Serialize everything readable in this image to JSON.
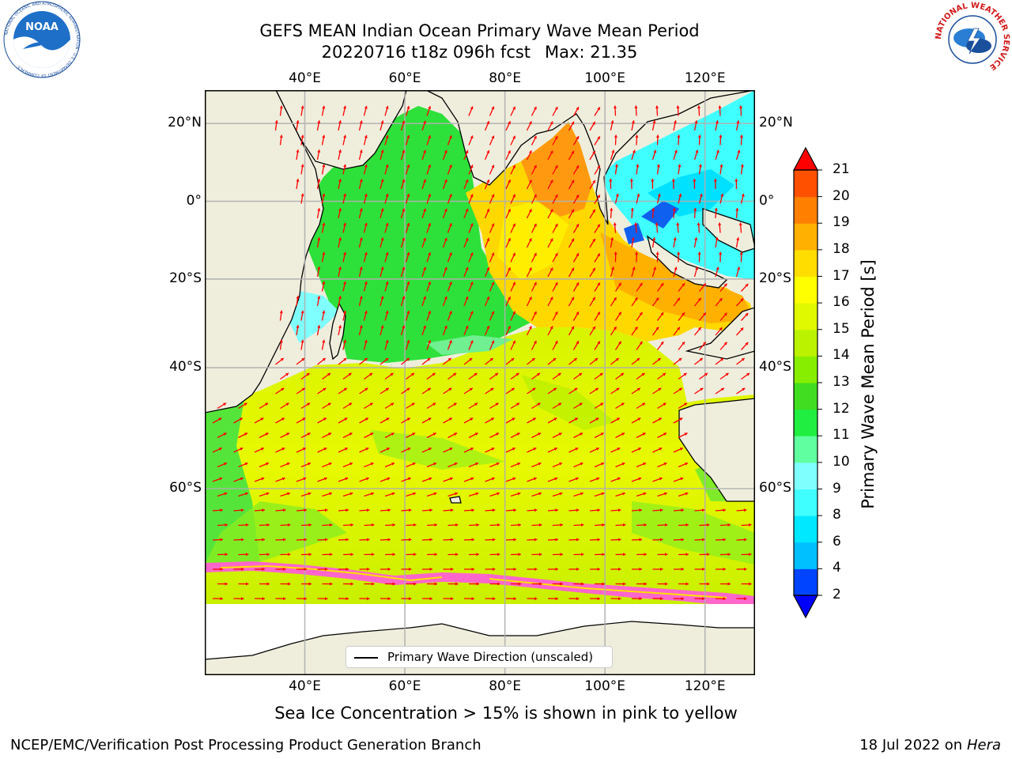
{
  "title": {
    "line1": "GEFS MEAN Indian Ocean Primary Wave Mean Period",
    "line2_run": "20220716 t18z 096h fcst",
    "line2_max": "Max: 21.35"
  },
  "map": {
    "lon_labels": [
      "40°E",
      "60°E",
      "80°E",
      "100°E",
      "120°E"
    ],
    "lat_labels": [
      "20°N",
      "0°",
      "20°S",
      "40°S",
      "60°S"
    ],
    "lon_range": [
      20,
      130
    ],
    "lat_range": [
      -77,
      28
    ],
    "legend_label": "Primary Wave Direction (unscaled)",
    "land_color": "#efeedd",
    "arrow_color": "#ff0000"
  },
  "colorbar": {
    "label": "Primary Wave Mean Period [s]",
    "ticks": [
      "2",
      "4",
      "6",
      "8",
      "9",
      "10",
      "11",
      "12",
      "13",
      "14",
      "15",
      "16",
      "17",
      "18",
      "19",
      "20",
      "21"
    ],
    "colors": [
      "#0044ff",
      "#00c0ff",
      "#00e8ff",
      "#40ffff",
      "#80ffff",
      "#60ffa0",
      "#20ee40",
      "#40dd20",
      "#88ee00",
      "#bbf200",
      "#e0f800",
      "#ffff00",
      "#ffdd00",
      "#ffb000",
      "#ff8000",
      "#ff5000",
      "#ff1a00"
    ],
    "under_color": "#0000ff",
    "over_color": "#ff0000"
  },
  "subtitle": "Sea Ice Concentration > 15% is shown in pink to yellow",
  "footer": {
    "left": "NCEP/EMC/Verification Post Processing Product Generation Branch",
    "date": "18 Jul 2022 on",
    "host": "Hera"
  },
  "logos": {
    "noaa_text": "NOAA",
    "noaa_ring": "NATIONAL OCEANIC AND ATMOSPHERIC ADMINISTRATION · U.S. DEPARTMENT OF COMMERCE",
    "nws_ring": "NATIONAL WEATHER SERVICE"
  }
}
